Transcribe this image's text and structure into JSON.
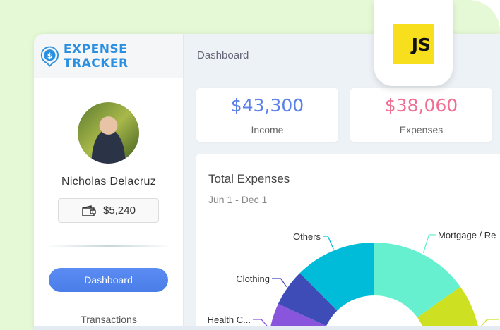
{
  "app": {
    "title": "EXPENSE TRACKER",
    "brand_color": "#2a8fe0",
    "icon": "dollar-pin-icon"
  },
  "badge": {
    "label": "JS",
    "color": "#f7df1e"
  },
  "sidebar": {
    "user_name": "Nicholas Delacruz",
    "balance": "$5,240",
    "balance_icon": "wallet-icon",
    "nav": [
      {
        "label": "Dashboard",
        "active": true
      },
      {
        "label": "Transactions",
        "active": false
      }
    ]
  },
  "header": {
    "breadcrumb": "Dashboard"
  },
  "stats": [
    {
      "value": "$43,300",
      "label": "Income",
      "color": "#5b80e8"
    },
    {
      "value": "$38,060",
      "label": "Expenses",
      "color": "#f06e92"
    }
  ],
  "chart_card": {
    "title": "Total Expenses",
    "date_range": "Jun 1 - Dec 1"
  },
  "chart_data": {
    "type": "pie",
    "variant": "donut",
    "title": "Total Expenses",
    "subtitle": "Jun 1 - Dec 1",
    "slices": [
      {
        "label": "Mortgage / Re",
        "percent": 15.1,
        "color": "#66f0cf"
      },
      {
        "label": "F",
        "percent": 18,
        "color": "#cde021"
      },
      {
        "label": "Health C...",
        "percent": 14,
        "color": "#8a55dd"
      },
      {
        "label": "Clothing",
        "percent": 5.7,
        "color": "#3e4cb8"
      },
      {
        "label": "Others",
        "percent": 12.4,
        "color": "#00bcd8"
      }
    ]
  }
}
